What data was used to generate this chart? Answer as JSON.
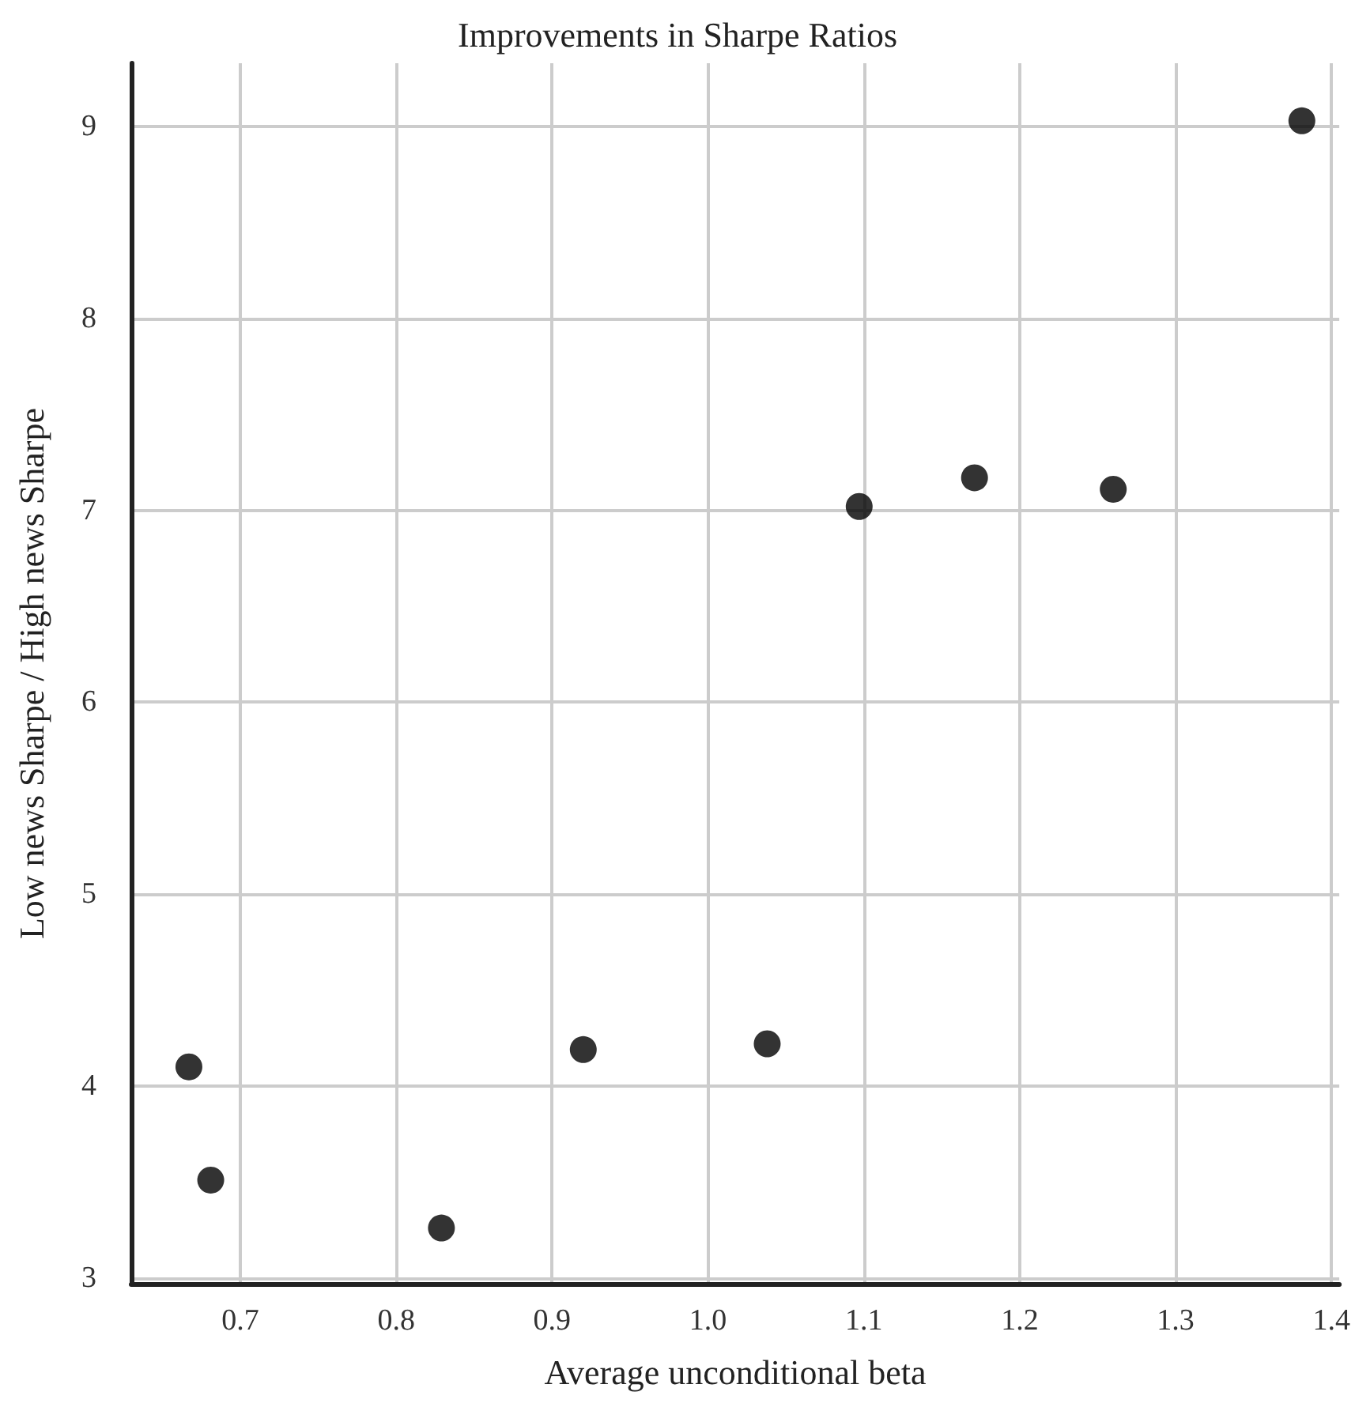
{
  "chart_data": {
    "type": "scatter",
    "title": "Improvements in Sharpe Ratios",
    "xlabel": "Average unconditional beta",
    "ylabel": "Low news Sharpe / High news Sharpe",
    "x": [
      0.667,
      0.681,
      0.829,
      0.92,
      1.038,
      1.097,
      1.171,
      1.26,
      1.381
    ],
    "values": [
      4.1,
      3.51,
      3.26,
      4.19,
      4.22,
      7.02,
      7.17,
      7.11,
      9.03
    ],
    "color": "#000000",
    "marker": "circle",
    "grid": true,
    "xlim": [
      0.63,
      1.405
    ],
    "xticks": [
      0.7,
      0.8,
      0.9,
      {
        "value": 1,
        "label": "1.0"
      },
      1.1,
      1.2,
      1.3,
      1.4
    ],
    "ylim": [
      2.97,
      9.33
    ],
    "yticks": [
      3,
      4,
      5,
      6,
      7,
      8,
      9
    ]
  }
}
